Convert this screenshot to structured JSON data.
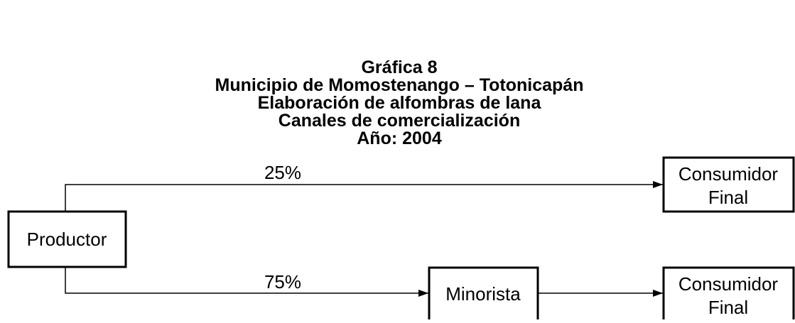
{
  "title": [
    "Gráfica 8",
    "Municipio de Momostenango – Totonicapán",
    "Elaboración de alfombras de lana",
    "Canales de comercialización",
    "Año: 2004"
  ],
  "nodes": [
    {
      "lines": [
        "Productor"
      ]
    },
    {
      "lines": [
        "Consumidor",
        "Final"
      ]
    },
    {
      "lines": [
        "Minorista"
      ]
    },
    {
      "lines": [
        "Consumidor",
        "Final"
      ]
    }
  ],
  "edges": [
    {
      "label": "25%"
    },
    {
      "label": "75%"
    }
  ]
}
